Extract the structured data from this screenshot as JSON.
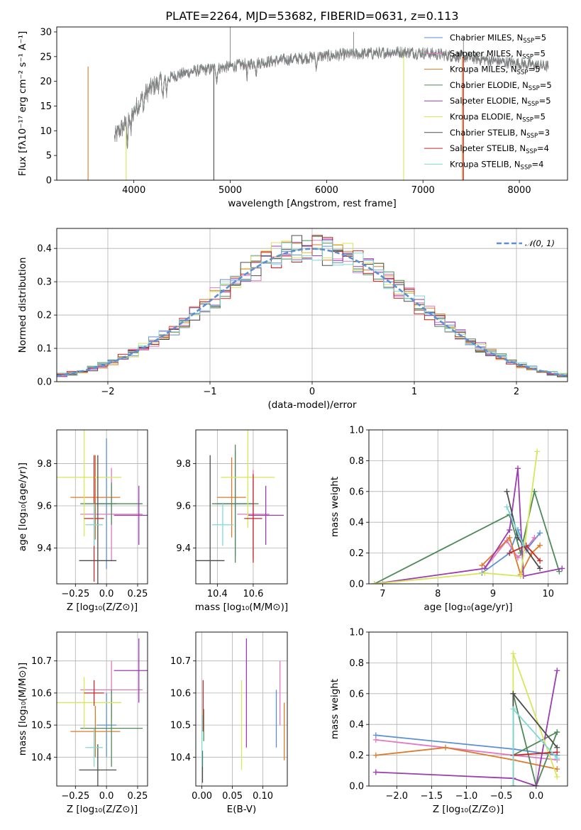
{
  "figure": {
    "title": "PLATE=2264, MJD=53682, FIBERID=0631, z=0.113"
  },
  "palette": {
    "Chabrier MILES": "#5b8fd6",
    "Salpeter MILES": "#e377c2",
    "Kroupa MILES": "#dd7a2a",
    "Chabrier ELODIE": "#4e8a58",
    "Salpeter ELODIE": "#9a3db0",
    "Kroupa ELODIE": "#d8e65a",
    "Chabrier STELIB": "#4d4d4d",
    "Salpeter STELIB": "#c42a2a",
    "Kroupa STELIB": "#7fd8d6",
    "gauss": "#5b8fd6",
    "grid": "#b0b0b0"
  },
  "chart_data": [
    {
      "id": "spectrum",
      "type": "line",
      "xlabel": "wavelength [Angstrom, rest frame]",
      "ylabel": "Flux [fλ10⁻¹⁷ erg cm⁻² s⁻¹ A⁻¹]",
      "xlim": [
        3200,
        8500
      ],
      "ylim": [
        0,
        31
      ],
      "xticks": [
        "4000",
        "5000",
        "6000",
        "7000",
        "8000"
      ],
      "yticks": [
        "0",
        "5",
        "10",
        "15",
        "20",
        "25",
        "30"
      ],
      "grid": false,
      "legend_position": "top-right",
      "legend": [
        {
          "series": "Chabrier MILES",
          "text": "Chabrier MILES, N",
          "sub": "SSP",
          "tail": "=5"
        },
        {
          "series": "Salpeter MILES",
          "text": "Salpeter MILES, N",
          "sub": "SSP",
          "tail": "=5"
        },
        {
          "series": "Kroupa MILES",
          "text": "Kroupa MILES, N",
          "sub": "SSP",
          "tail": "=5"
        },
        {
          "series": "Chabrier ELODIE",
          "text": "Chabrier ELODIE, N",
          "sub": "SSP",
          "tail": "=5"
        },
        {
          "series": "Salpeter ELODIE",
          "text": "Salpeter ELODIE, N",
          "sub": "SSP",
          "tail": "=5"
        },
        {
          "series": "Kroupa ELODIE",
          "text": "Kroupa ELODIE, N",
          "sub": "SSP",
          "tail": "=5"
        },
        {
          "series": "Chabrier STELIB",
          "text": "Chabrier STELIB, N",
          "sub": "SSP",
          "tail": "=3"
        },
        {
          "series": "Salpeter STELIB",
          "text": "Salpeter STELIB, N",
          "sub": "SSP",
          "tail": "=4"
        },
        {
          "series": "Kroupa STELIB",
          "text": "Kroupa STELIB, N",
          "sub": "SSP",
          "tail": "=4"
        }
      ],
      "continuum": [
        [
          3800,
          8.5
        ],
        [
          3850,
          10
        ],
        [
          3950,
          12
        ],
        [
          4000,
          14
        ],
        [
          4100,
          17
        ],
        [
          4200,
          19
        ],
        [
          4400,
          21
        ],
        [
          4600,
          22
        ],
        [
          4800,
          22.5
        ],
        [
          5000,
          23
        ],
        [
          5200,
          23.6
        ],
        [
          5500,
          24.2
        ],
        [
          5800,
          24.8
        ],
        [
          6100,
          25.3
        ],
        [
          6400,
          25.6
        ],
        [
          6700,
          26
        ],
        [
          7000,
          25.8
        ],
        [
          7400,
          25
        ],
        [
          7800,
          24
        ],
        [
          8200,
          23.2
        ],
        [
          8300,
          23
        ]
      ],
      "absorption_lines": [
        [
          3934,
          5
        ],
        [
          3969,
          4
        ],
        [
          4102,
          3
        ],
        [
          4304,
          4
        ],
        [
          4340,
          3
        ],
        [
          4861,
          3
        ],
        [
          5175,
          4
        ],
        [
          5270,
          2
        ],
        [
          5892,
          3
        ],
        [
          6563,
          2
        ]
      ],
      "emission_spikes": [
        [
          5000,
          31
        ],
        [
          6280,
          30
        ],
        [
          7420,
          29
        ]
      ],
      "model_dropouts": [
        {
          "series": "Kroupa MILES",
          "to": [
            [
              3525,
              0
            ],
            [
              7410,
              0
            ]
          ]
        },
        {
          "series": "Kroupa ELODIE",
          "to": [
            [
              3920,
              0
            ],
            [
              6800,
              0
            ]
          ]
        },
        {
          "series": "Chabrier STELIB",
          "to": [
            [
              4830,
              0
            ]
          ]
        },
        {
          "series": "Salpeter STELIB",
          "to": [
            [
              7420,
              0
            ]
          ]
        }
      ],
      "data_series": "observed",
      "observed_color": "#808080"
    },
    {
      "id": "residuals",
      "type": "histogram",
      "xlabel": "(data-model)/error",
      "ylabel": "Normed distribution",
      "xlim": [
        -2.5,
        2.5
      ],
      "ylim": [
        0,
        0.46
      ],
      "xticks": [
        "−2",
        "−1",
        "0",
        "1",
        "2"
      ],
      "yticks": [
        "0.0",
        "0.1",
        "0.2",
        "0.3",
        "0.4"
      ],
      "grid": true,
      "legend_position": "top-right",
      "legend_text": "𝒩(0, 1)",
      "bin_width": 0.1,
      "gaussian": {
        "mean": 0,
        "sigma": 1
      }
    },
    {
      "id": "age-vs-Z",
      "type": "errorbar",
      "xlabel": "Z [log₁₀(Z/Z⊙)]",
      "ylabel": "age  [log₁₀(age/yr)]",
      "xlim": [
        -0.4,
        0.33
      ],
      "ylim": [
        9.23,
        9.96
      ],
      "xticks": [
        -0.25,
        0.0,
        0.25
      ],
      "yticks": [
        9.4,
        9.6,
        9.8
      ],
      "grid": true,
      "points": [
        {
          "series": "Chabrier MILES",
          "x": 0.0,
          "xerr": 0.08,
          "y": 9.61,
          "yerr": 0.31
        },
        {
          "series": "Salpeter MILES",
          "x": 0.04,
          "xerr": 0.25,
          "y": 9.56,
          "yerr": 0.22
        },
        {
          "series": "Kroupa MILES",
          "x": -0.09,
          "xerr": 0.2,
          "y": 9.64,
          "yerr": 0.2
        },
        {
          "series": "Chabrier ELODIE",
          "x": 0.04,
          "xerr": 0.25,
          "y": 9.61,
          "yerr": 0.1
        },
        {
          "series": "Salpeter ELODIE",
          "x": 0.26,
          "xerr": 0.2,
          "y": 9.555,
          "yerr": 0.14
        },
        {
          "series": "Kroupa ELODIE",
          "x": -0.18,
          "xerr": 0.3,
          "y": 9.735,
          "yerr": 0.28
        },
        {
          "series": "Chabrier STELIB",
          "x": -0.07,
          "xerr": 0.15,
          "y": 9.34,
          "yerr": 0.5
        },
        {
          "series": "Salpeter STELIB",
          "x": -0.1,
          "xerr": 0.08,
          "y": 9.54,
          "yerr": 0.3
        },
        {
          "series": "Kroupa STELIB",
          "x": -0.1,
          "xerr": 0.07,
          "y": 9.51,
          "yerr": 0.1
        }
      ]
    },
    {
      "id": "age-vs-mass",
      "type": "errorbar",
      "xlabel": "mass [log₁₀(M/M⊙)]",
      "ylabel": "",
      "xlim": [
        10.28,
        10.79
      ],
      "ylim": [
        9.23,
        9.96
      ],
      "xticks": [
        10.4,
        10.6
      ],
      "yticks": [
        9.4,
        9.6,
        9.8
      ],
      "grid": true,
      "points": [
        {
          "series": "Chabrier MILES",
          "x": 10.5,
          "xerr": 0.1,
          "y": 9.61,
          "yerr": 0.25
        },
        {
          "series": "Salpeter MILES",
          "x": 10.6,
          "xerr": 0.09,
          "y": 9.56,
          "yerr": 0.21
        },
        {
          "series": "Kroupa MILES",
          "x": 10.48,
          "xerr": 0.08,
          "y": 9.64,
          "yerr": 0.19
        },
        {
          "series": "Chabrier ELODIE",
          "x": 10.5,
          "xerr": 0.13,
          "y": 9.61,
          "yerr": 0.28
        },
        {
          "series": "Salpeter ELODIE",
          "x": 10.67,
          "xerr": 0.1,
          "y": 9.555,
          "yerr": 0.14
        },
        {
          "series": "Kroupa ELODIE",
          "x": 10.57,
          "xerr": 0.15,
          "y": 9.735,
          "yerr": 0.24
        },
        {
          "series": "Chabrier STELIB",
          "x": 10.36,
          "xerr": 0.08,
          "y": 9.34,
          "yerr": 0.5
        },
        {
          "series": "Salpeter STELIB",
          "x": 10.6,
          "xerr": 0.05,
          "y": 9.54,
          "yerr": 0.21
        },
        {
          "series": "Kroupa STELIB",
          "x": 10.43,
          "xerr": 0.06,
          "y": 9.51,
          "yerr": 0.1
        }
      ]
    },
    {
      "id": "weight-vs-age",
      "type": "line",
      "xlabel": "age  [log₁₀(age/yr)]",
      "ylabel": "mass weight",
      "xlim": [
        6.75,
        10.35
      ],
      "ylim": [
        0,
        1.0
      ],
      "xticks": [
        7,
        8,
        9,
        10
      ],
      "yticks": [
        0.0,
        0.2,
        0.4,
        0.6,
        0.8,
        1.0
      ],
      "grid": true,
      "series": [
        {
          "name": "Chabrier MILES",
          "x": [
            8.8,
            9.3,
            9.45,
            9.6,
            9.85
          ],
          "y": [
            0.07,
            0.2,
            0.35,
            0.22,
            0.33
          ]
        },
        {
          "name": "Salpeter MILES",
          "x": [
            8.85,
            9.25,
            9.45,
            9.6,
            9.75
          ],
          "y": [
            0.1,
            0.28,
            0.17,
            0.23,
            0.3
          ]
        },
        {
          "name": "Kroupa MILES",
          "x": [
            8.8,
            9.3,
            9.5,
            9.7,
            9.85
          ],
          "y": [
            0.12,
            0.3,
            0.06,
            0.2,
            0.25
          ]
        },
        {
          "name": "Chabrier ELODIE",
          "x": [
            6.85,
            9.3,
            9.5,
            9.75,
            10.2
          ],
          "y": [
            0.0,
            0.45,
            0.2,
            0.6,
            0.08
          ]
        },
        {
          "name": "Salpeter ELODIE",
          "x": [
            6.85,
            8.85,
            9.3,
            9.45,
            9.55,
            10.25
          ],
          "y": [
            0.0,
            0.1,
            0.35,
            0.75,
            0.05,
            0.1
          ]
        },
        {
          "name": "Kroupa ELODIE",
          "x": [
            6.85,
            8.85,
            9.5,
            9.8
          ],
          "y": [
            0.0,
            0.07,
            0.05,
            0.86
          ]
        },
        {
          "name": "Chabrier STELIB",
          "x": [
            9.25,
            9.45,
            9.85
          ],
          "y": [
            0.6,
            0.3,
            0.1
          ]
        },
        {
          "name": "Salpeter STELIB",
          "x": [
            9.3,
            9.6,
            9.85
          ],
          "y": [
            0.2,
            0.25,
            0.15
          ]
        },
        {
          "name": "Kroupa STELIB",
          "x": [
            9.25,
            9.55
          ],
          "y": [
            0.5,
            0.25
          ]
        }
      ]
    },
    {
      "id": "mass-vs-Z",
      "type": "errorbar",
      "xlabel": "Z [log₁₀(Z/Z⊙)]",
      "ylabel": "mass [log₁₀(M/M⊙)]",
      "xlim": [
        -0.4,
        0.33
      ],
      "ylim": [
        10.31,
        10.79
      ],
      "xticks": [
        -0.25,
        0.0,
        0.25
      ],
      "yticks": [
        10.4,
        10.5,
        10.6,
        10.7
      ],
      "grid": true,
      "points": [
        {
          "series": "Chabrier MILES",
          "x": 0.0,
          "xerr": 0.08,
          "y": 10.5,
          "yerr": 0.1
        },
        {
          "series": "Salpeter MILES",
          "x": 0.04,
          "xerr": 0.25,
          "y": 10.61,
          "yerr": 0.09
        },
        {
          "series": "Kroupa MILES",
          "x": -0.09,
          "xerr": 0.2,
          "y": 10.48,
          "yerr": 0.08
        },
        {
          "series": "Chabrier ELODIE",
          "x": 0.04,
          "xerr": 0.25,
          "y": 10.49,
          "yerr": 0.12
        },
        {
          "series": "Salpeter ELODIE",
          "x": 0.26,
          "xerr": 0.2,
          "y": 10.67,
          "yerr": 0.1
        },
        {
          "series": "Kroupa ELODIE",
          "x": -0.18,
          "xerr": 0.3,
          "y": 10.57,
          "yerr": 0.08
        },
        {
          "series": "Chabrier STELIB",
          "x": -0.07,
          "xerr": 0.15,
          "y": 10.36,
          "yerr": 0.08
        },
        {
          "series": "Salpeter STELIB",
          "x": -0.1,
          "xerr": 0.08,
          "y": 10.6,
          "yerr": 0.04
        },
        {
          "series": "Kroupa STELIB",
          "x": -0.1,
          "xerr": 0.07,
          "y": 10.43,
          "yerr": 0.06
        }
      ]
    },
    {
      "id": "mass-vs-EBV",
      "type": "errorbar",
      "xlabel": "E(B-V)",
      "ylabel": "",
      "xlim": [
        -0.01,
        0.14
      ],
      "ylim": [
        10.31,
        10.79
      ],
      "xticks": [
        "0.00",
        "0.05",
        "0.10"
      ],
      "yticks": [
        10.4,
        10.5,
        10.6,
        10.7
      ],
      "grid": true,
      "points": [
        {
          "series": "Chabrier MILES",
          "x": 0.122,
          "xerr": 0,
          "y": 10.52,
          "yerr": 0.09
        },
        {
          "series": "Salpeter MILES",
          "x": 0.128,
          "xerr": 0,
          "y": 10.6,
          "yerr": 0.1
        },
        {
          "series": "Kroupa MILES",
          "x": 0.135,
          "xerr": 0,
          "y": 10.48,
          "yerr": 0.09
        },
        {
          "series": "Chabrier ELODIE",
          "x": 0.003,
          "xerr": 0,
          "y": 10.5,
          "yerr": 0.05
        },
        {
          "series": "Salpeter ELODIE",
          "x": 0.073,
          "xerr": 0,
          "y": 10.6,
          "yerr": 0.17
        },
        {
          "series": "Kroupa ELODIE",
          "x": 0.065,
          "xerr": 0,
          "y": 10.5,
          "yerr": 0.14
        },
        {
          "series": "Chabrier STELIB",
          "x": 0.001,
          "xerr": 0,
          "y": 10.37,
          "yerr": 0.05
        },
        {
          "series": "Salpeter STELIB",
          "x": 0.002,
          "xerr": 0,
          "y": 10.56,
          "yerr": 0.08
        },
        {
          "series": "Kroupa STELIB",
          "x": 0.0,
          "xerr": 0,
          "y": 10.45,
          "yerr": 0.08
        }
      ]
    },
    {
      "id": "weight-vs-Z",
      "type": "line",
      "xlabel": "Z [log₁₀(Z/Z⊙)]",
      "ylabel": "mass weight",
      "xlim": [
        -2.4,
        0.45
      ],
      "ylim": [
        0,
        1.0
      ],
      "xticks": [
        "−2.0",
        "−1.5",
        "−1.0",
        "−0.5",
        "0.0"
      ],
      "yticks": [
        0.0,
        0.2,
        0.4,
        0.6,
        0.8,
        1.0
      ],
      "grid": true,
      "series": [
        {
          "name": "Chabrier MILES",
          "x": [
            -2.3,
            -0.33,
            0.3
          ],
          "y": [
            0.33,
            0.24,
            0.2
          ]
        },
        {
          "name": "Salpeter MILES",
          "x": [
            -2.3,
            -0.33,
            0.3
          ],
          "y": [
            0.3,
            0.2,
            0.17
          ]
        },
        {
          "name": "Kroupa MILES",
          "x": [
            -2.3,
            -1.3,
            -0.33,
            0.3
          ],
          "y": [
            0.2,
            0.25,
            0.17,
            0.11
          ]
        },
        {
          "name": "Chabrier ELODIE",
          "x": [
            -0.33,
            0.0,
            0.3,
            -0.33
          ],
          "y": [
            0.6,
            0.0,
            0.35,
            0.2
          ]
        },
        {
          "name": "Salpeter ELODIE",
          "x": [
            -2.3,
            -0.33,
            0.0,
            0.3,
            0.0
          ],
          "y": [
            0.09,
            0.05,
            0.0,
            0.75,
            0.0
          ]
        },
        {
          "name": "Kroupa ELODIE",
          "x": [
            -0.33,
            -0.33,
            0.3
          ],
          "y": [
            0.0,
            0.86,
            0.06
          ]
        },
        {
          "name": "Chabrier STELIB",
          "x": [
            -0.33,
            -0.33,
            0.3
          ],
          "y": [
            0.0,
            0.6,
            0.25
          ]
        },
        {
          "name": "Salpeter STELIB",
          "x": [
            -0.33,
            0.3
          ],
          "y": [
            0.2,
            0.22
          ]
        },
        {
          "name": "Kroupa STELIB",
          "x": [
            -0.33,
            -0.33,
            0.3
          ],
          "y": [
            0.0,
            0.5,
            0.18
          ]
        }
      ]
    }
  ]
}
